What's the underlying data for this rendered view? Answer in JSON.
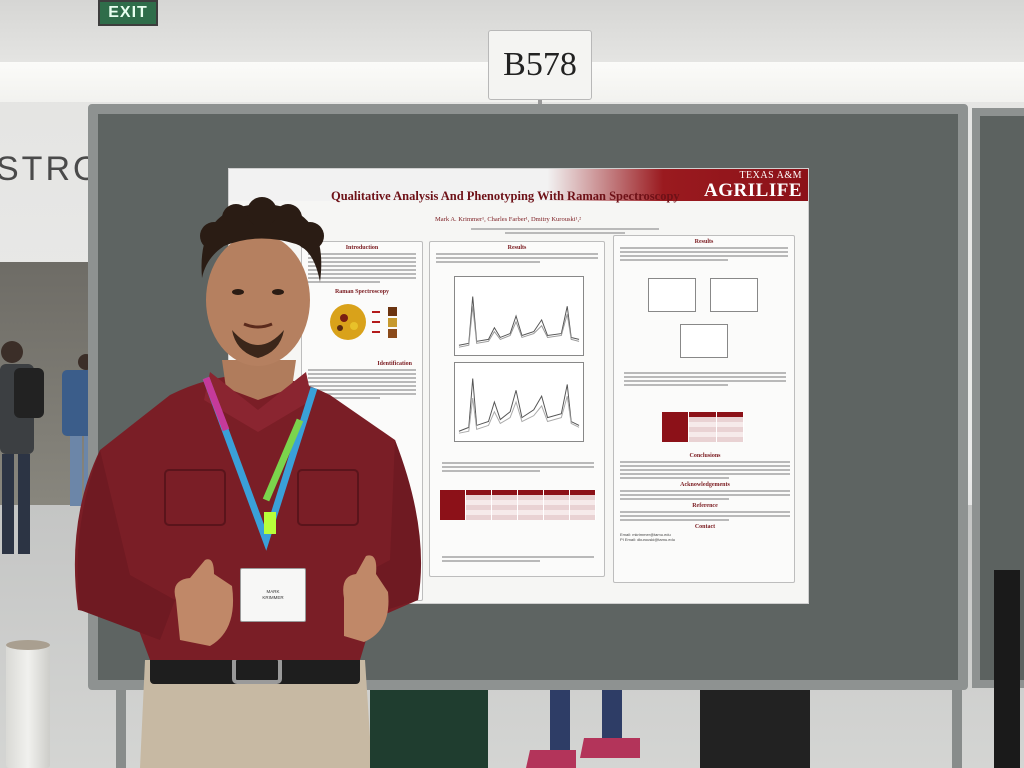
{
  "scene": {
    "exit_sign": "EXIT",
    "wall_text": "STRO",
    "booth_number": "B578"
  },
  "poster": {
    "title": "Qualitative Analysis And Phenotyping With Raman Spectroscopy",
    "logo_line1": "TEXAS A&M",
    "logo_line2": "AGRILIFE",
    "authors": "Mark A. Krimmer¹, Charles Farber¹, Dmitry Kurouski¹,²",
    "sections": {
      "introduction": "Introduction",
      "raman": "Raman Spectroscopy",
      "identification": "Identification",
      "results_left": "Results",
      "results_right": "Results",
      "conclusions": "Conclusions",
      "acknowledgements": "Acknowledgements",
      "reference": "Reference",
      "contact": "Contact"
    },
    "contact_lines": [
      "Email: mkrimmer@tamu.edu",
      "PI Email: dkurouski@tamu.edu"
    ]
  },
  "badge": {
    "name_line1": "MARK",
    "name_line2": "KRIMMER"
  },
  "colors": {
    "poster_accent": "#8c1118",
    "board": "#5e6462",
    "shirt": "#7a1e26"
  }
}
